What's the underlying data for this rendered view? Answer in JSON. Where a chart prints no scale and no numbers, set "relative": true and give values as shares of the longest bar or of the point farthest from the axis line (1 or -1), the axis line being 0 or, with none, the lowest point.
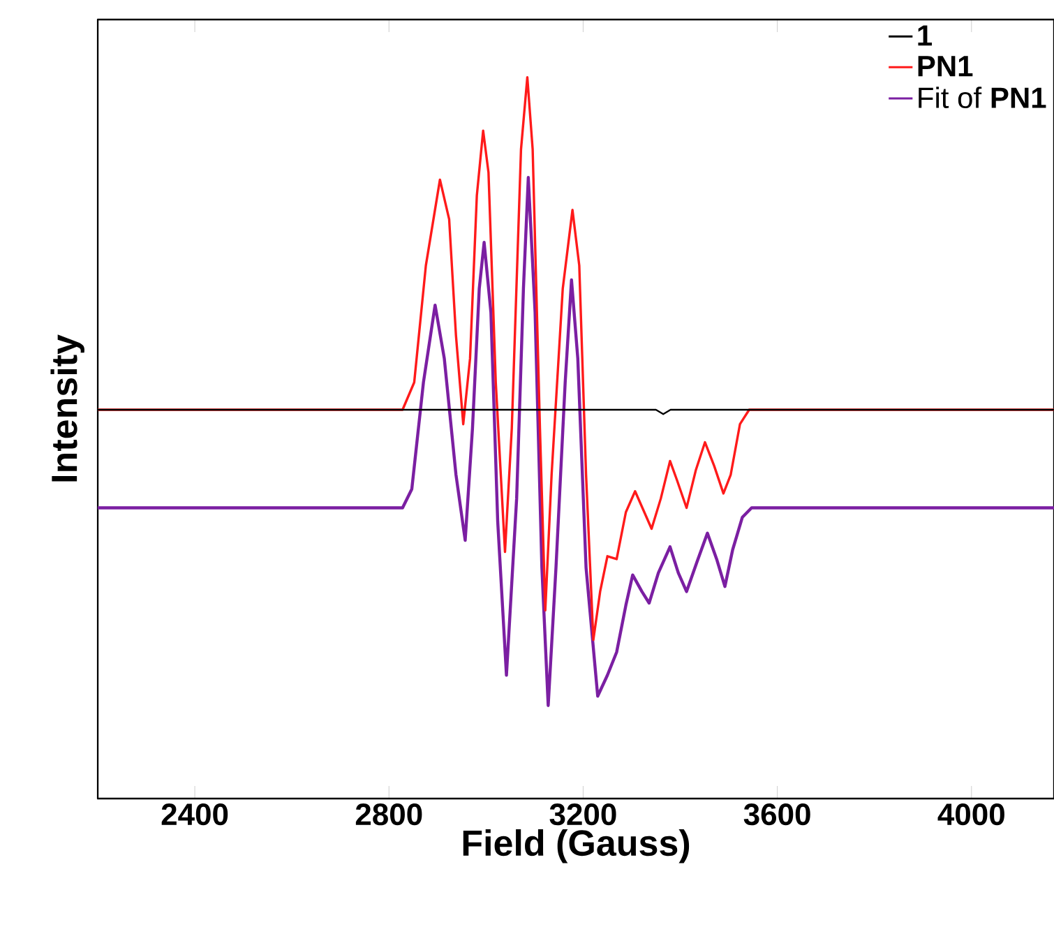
{
  "chart_data": {
    "type": "line",
    "xlabel": "Field (Gauss)",
    "ylabel": "Intensity",
    "relative": true,
    "xlim": [
      2200,
      4170
    ],
    "xticks": [
      2400,
      2800,
      3200,
      3600,
      4000
    ],
    "legend": "top right",
    "marker": "none",
    "line_style": "solid",
    "series": [
      {
        "name": "**1**",
        "color": "#000000",
        "x": [
          2200,
          3350,
          3365,
          3380,
          4170
        ],
        "values": [
          0.539,
          0.539,
          0.533,
          0.539,
          0.539
        ]
      },
      {
        "name": "**PN1**",
        "color": "#ff1a1a",
        "x": [
          2200,
          2775,
          2828,
          2852,
          2876,
          2905,
          2924,
          2938,
          2953,
          2967,
          2981,
          2994,
          3005,
          3020,
          3039,
          3053,
          3072,
          3085,
          3096,
          3111,
          3122,
          3135,
          3158,
          3178,
          3192,
          3206,
          3221,
          3235,
          3250,
          3269,
          3288,
          3307,
          3326,
          3341,
          3360,
          3379,
          3393,
          3413,
          3432,
          3451,
          3470,
          3489,
          3504,
          3523,
          3542,
          3580,
          4170
        ],
        "values": [
          0.539,
          0.539,
          0.539,
          0.577,
          0.739,
          0.858,
          0.803,
          0.642,
          0.519,
          0.61,
          0.836,
          0.926,
          0.868,
          0.577,
          0.342,
          0.513,
          0.9,
          1.0,
          0.9,
          0.513,
          0.261,
          0.449,
          0.707,
          0.816,
          0.739,
          0.449,
          0.22,
          0.287,
          0.336,
          0.332,
          0.397,
          0.426,
          0.397,
          0.374,
          0.416,
          0.468,
          0.442,
          0.403,
          0.455,
          0.494,
          0.461,
          0.423,
          0.449,
          0.519,
          0.539,
          0.539,
          0.539
        ]
      },
      {
        "name": "Fit of **PN1**",
        "color": "#7b1fa2",
        "x": [
          2200,
          2775,
          2828,
          2847,
          2871,
          2895,
          2914,
          2938,
          2957,
          2972,
          2986,
          2996,
          3010,
          3024,
          3042,
          3063,
          3077,
          3087,
          3101,
          3115,
          3128,
          3144,
          3163,
          3176,
          3189,
          3206,
          3230,
          3250,
          3269,
          3288,
          3302,
          3321,
          3336,
          3355,
          3379,
          3396,
          3413,
          3435,
          3456,
          3475,
          3492,
          3508,
          3528,
          3547,
          3580,
          4170
        ],
        "values": [
          0.403,
          0.403,
          0.403,
          0.429,
          0.577,
          0.684,
          0.61,
          0.449,
          0.358,
          0.513,
          0.707,
          0.771,
          0.674,
          0.384,
          0.171,
          0.416,
          0.707,
          0.861,
          0.674,
          0.32,
          0.129,
          0.32,
          0.577,
          0.719,
          0.61,
          0.32,
          0.142,
          0.171,
          0.203,
          0.268,
          0.31,
          0.287,
          0.271,
          0.313,
          0.349,
          0.313,
          0.287,
          0.329,
          0.368,
          0.332,
          0.294,
          0.345,
          0.39,
          0.403,
          0.403,
          0.403
        ]
      }
    ]
  }
}
